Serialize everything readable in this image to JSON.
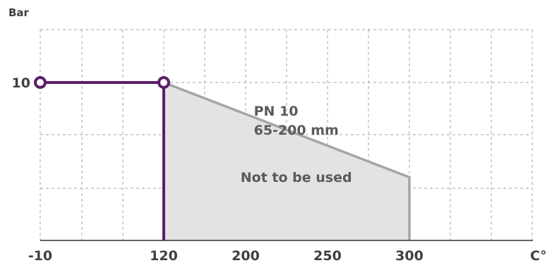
{
  "chart_data": {
    "type": "line",
    "ylabel": "Bar",
    "xlabel": "C°",
    "x_ticks": [
      "-10",
      "120",
      "200",
      "250",
      "300"
    ],
    "y_ticks": [
      "10"
    ],
    "grid": true,
    "series": [
      {
        "points": [
          {
            "x": -10,
            "y": 10
          },
          {
            "x": 120,
            "y": 10
          },
          {
            "x": 120,
            "y": 0
          }
        ],
        "color": "#5b1f6a",
        "markers": [
          {
            "x": -10,
            "y": 10
          },
          {
            "x": 120,
            "y": 10
          }
        ]
      },
      {
        "name": "PN 10 65-200 mm",
        "type": "area",
        "points": [
          {
            "x": 120,
            "y": 0
          },
          {
            "x": 120,
            "y": 10
          },
          {
            "x": 300,
            "y": 4
          },
          {
            "x": 300,
            "y": 0
          }
        ],
        "line_color": "#a5a5a5",
        "fill_color": "#e3e3e3"
      }
    ],
    "annotations": [
      {
        "lines": [
          "PN 10",
          "65-200 mm"
        ],
        "x": 205,
        "y": 7.9
      },
      {
        "lines": [
          "Not to be used"
        ],
        "x": 195,
        "y": 3.7
      }
    ],
    "colors": {
      "grid": "#b5b5b5",
      "axis": "#333333",
      "text": "#3f3f3f"
    }
  }
}
